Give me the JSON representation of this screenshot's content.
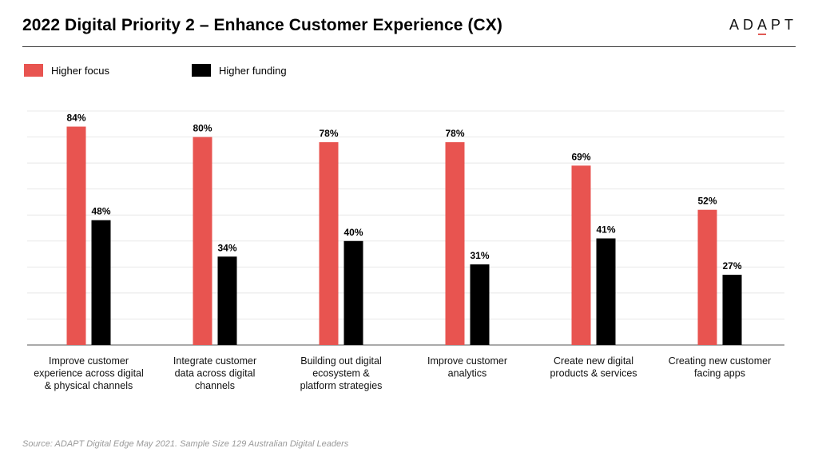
{
  "header": {
    "title": "2022 Digital Priority 2 – Enhance Customer Experience (CX)",
    "brand": [
      "A",
      "D",
      "A",
      "P",
      "T"
    ]
  },
  "chart_data": {
    "type": "bar",
    "ylim": [
      0,
      90
    ],
    "grid": true,
    "legend_position": "top-left",
    "categories": [
      [
        "Improve customer",
        "experience across digital",
        "& physical channels"
      ],
      [
        "Integrate customer",
        "data across digital",
        "channels"
      ],
      [
        "Building out digital",
        "ecosystem &",
        "platform strategies"
      ],
      [
        "Improve customer",
        "analytics"
      ],
      [
        "Create new digital",
        "products & services"
      ],
      [
        "Creating new customer",
        "facing apps"
      ]
    ],
    "series": [
      {
        "name": "Higher focus",
        "color": "#e85450",
        "values": [
          84,
          80,
          78,
          78,
          69,
          52
        ],
        "labels": [
          "84%",
          "80%",
          "78%",
          "78%",
          "69%",
          "52%"
        ]
      },
      {
        "name": "Higher funding",
        "color": "#000000",
        "values": [
          48,
          34,
          40,
          31,
          41,
          27
        ],
        "labels": [
          "48%",
          "34%",
          "40%",
          "31%",
          "41%",
          "27%"
        ]
      }
    ]
  },
  "footer": {
    "source": "Source: ADAPT Digital Edge May 2021. Sample Size 129 Australian Digital Leaders"
  }
}
